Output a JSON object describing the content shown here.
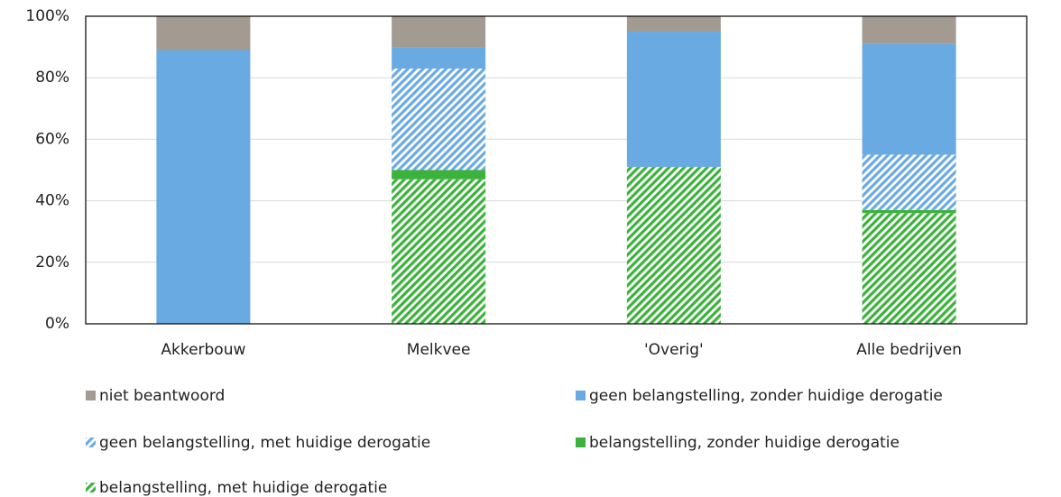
{
  "chart_data": {
    "type": "stacked_bar",
    "categories": [
      "Akkerbouw",
      "Melkvee",
      "'Overig'",
      "Alle bedrijven"
    ],
    "series": [
      {
        "name": "niet beantwoord",
        "color": "#a39a92",
        "hatched": false,
        "values": [
          11,
          10,
          5,
          9
        ]
      },
      {
        "name": "geen belangstelling, zonder huidige derogatie",
        "color": "#6aaae2",
        "hatched": false,
        "values": [
          89,
          7,
          44,
          36
        ]
      },
      {
        "name": "geen belangstelling, met huidige derogatie",
        "color": "#6aaae2",
        "hatched": true,
        "values": [
          0,
          33,
          0,
          18
        ]
      },
      {
        "name": "belangstelling, zonder huidige derogatie",
        "color": "#3cb23c",
        "hatched": false,
        "values": [
          0,
          3,
          0,
          1
        ]
      },
      {
        "name": "belangstelling, met huidige derogatie",
        "color": "#3cb23c",
        "hatched": true,
        "values": [
          0,
          47,
          51,
          36
        ]
      }
    ],
    "ylim": [
      0,
      100
    ],
    "yticks": [
      {
        "value": 0,
        "label": "0%"
      },
      {
        "value": 20,
        "label": "20%"
      },
      {
        "value": 40,
        "label": "40%"
      },
      {
        "value": 60,
        "label": "60%"
      },
      {
        "value": 80,
        "label": "80%"
      },
      {
        "value": 100,
        "label": "100%"
      }
    ],
    "grid": true
  }
}
